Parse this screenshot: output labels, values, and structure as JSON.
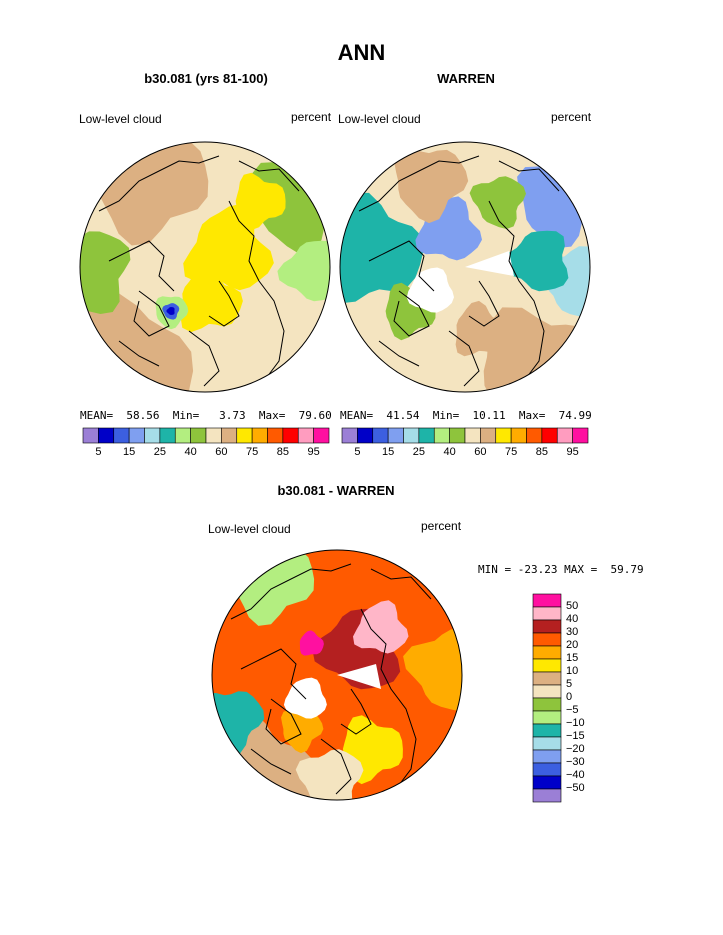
{
  "title": "ANN",
  "colors": {
    "cloud": [
      "#9b7fd6",
      "#0000c8",
      "#3c5fe0",
      "#7f9ff0",
      "#a6dde8",
      "#1eb4a8",
      "#b3ee80",
      "#8ec43c",
      "#f4e4c0",
      "#dcb082",
      "#ffe800",
      "#ffac00",
      "#ff5a00",
      "#ff0000",
      "#ff9cbf",
      "#ff10a0"
    ],
    "diff": [
      "#9b7fd6",
      "#0000c8",
      "#3c5fe0",
      "#7f9ff0",
      "#a6dde8",
      "#1eb4a8",
      "#b3ee80",
      "#8ec43c",
      "#f4e4c0",
      "#dcb082",
      "#ffe800",
      "#ffac00",
      "#ff5a00",
      "#b42020",
      "#ffb6c8",
      "#ff10a0"
    ],
    "land": "#000000"
  },
  "chart_data": [
    {
      "type": "heatmap",
      "title": "b30.081 (yrs 81-100)",
      "left_label": "Low-level cloud",
      "right_label": "percent",
      "stats": {
        "mean_label": "MEAN=",
        "mean": "58.56",
        "min_label": "Min=",
        "min": "3.73",
        "max_label": "Max=",
        "max": "79.60"
      },
      "colorbar_ticks": [
        "5",
        "15",
        "25",
        "40",
        "60",
        "75",
        "85",
        "95"
      ]
    },
    {
      "type": "heatmap",
      "title": "WARREN",
      "left_label": "Low-level cloud",
      "right_label": "percent",
      "stats": {
        "mean_label": "MEAN=",
        "mean": "41.54",
        "min_label": "Min=",
        "min": "10.11",
        "max_label": "Max=",
        "max": "74.99"
      },
      "colorbar_ticks": [
        "5",
        "15",
        "25",
        "40",
        "60",
        "75",
        "85",
        "95"
      ]
    },
    {
      "type": "heatmap",
      "title": "b30.081 - WARREN",
      "left_label": "Low-level cloud",
      "right_label": "percent",
      "stats": {
        "min_label": "MIN =",
        "min": "-23.23",
        "max_label": "MAX =",
        "max": "59.79"
      },
      "colorbar_ticks": [
        "50",
        "40",
        "30",
        "20",
        "15",
        "10",
        "5",
        "0",
        "−5",
        "−10",
        "−15",
        "−20",
        "−30",
        "−40",
        "−50"
      ]
    }
  ]
}
